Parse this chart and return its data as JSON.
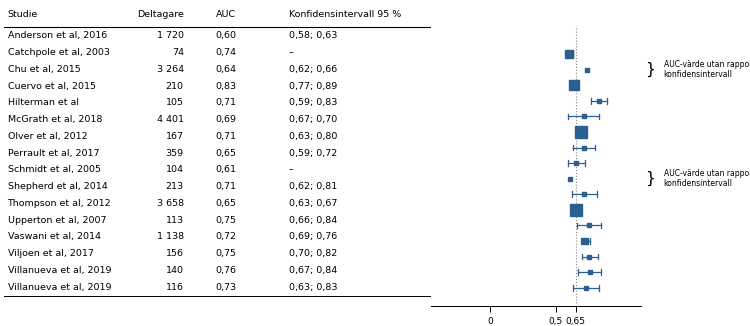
{
  "studies": [
    {
      "name": "Anderson et al, 2016",
      "n": "1 720",
      "auc": 0.6,
      "ci_text": "0,58; 0,63",
      "ci_lo": 0.58,
      "ci_hi": 0.63,
      "has_ci": true,
      "n_val": 1720
    },
    {
      "name": "Catchpole et al, 2003",
      "n": "74",
      "auc": 0.74,
      "ci_text": "–",
      "ci_lo": null,
      "ci_hi": null,
      "has_ci": false,
      "n_val": 74
    },
    {
      "name": "Chu et al, 2015",
      "n": "3 264",
      "auc": 0.64,
      "ci_text": "0,62; 0,66",
      "ci_lo": 0.62,
      "ci_hi": 0.66,
      "has_ci": true,
      "n_val": 3264
    },
    {
      "name": "Cuervo et al, 2015",
      "n": "210",
      "auc": 0.83,
      "ci_text": "0,77; 0,89",
      "ci_lo": 0.77,
      "ci_hi": 0.89,
      "has_ci": true,
      "n_val": 210
    },
    {
      "name": "Hilterman et al",
      "n": "105",
      "auc": 0.71,
      "ci_text": "0,59; 0,83",
      "ci_lo": 0.59,
      "ci_hi": 0.83,
      "has_ci": true,
      "n_val": 105
    },
    {
      "name": "McGrath et al, 2018",
      "n": "4 401",
      "auc": 0.69,
      "ci_text": "0,67; 0,70",
      "ci_lo": 0.67,
      "ci_hi": 0.7,
      "has_ci": true,
      "n_val": 4401
    },
    {
      "name": "Olver et al, 2012",
      "n": "167",
      "auc": 0.71,
      "ci_text": "0,63; 0,80",
      "ci_lo": 0.63,
      "ci_hi": 0.8,
      "has_ci": true,
      "n_val": 167
    },
    {
      "name": "Perrault et al, 2017",
      "n": "359",
      "auc": 0.65,
      "ci_text": "0,59; 0,72",
      "ci_lo": 0.59,
      "ci_hi": 0.72,
      "has_ci": true,
      "n_val": 359
    },
    {
      "name": "Schmidt et al, 2005",
      "n": "104",
      "auc": 0.61,
      "ci_text": "–",
      "ci_lo": null,
      "ci_hi": null,
      "has_ci": false,
      "n_val": 104
    },
    {
      "name": "Shepherd et al, 2014",
      "n": "213",
      "auc": 0.71,
      "ci_text": "0,62; 0,81",
      "ci_lo": 0.62,
      "ci_hi": 0.81,
      "has_ci": true,
      "n_val": 213
    },
    {
      "name": "Thompson et al, 2012",
      "n": "3 658",
      "auc": 0.65,
      "ci_text": "0,63; 0,67",
      "ci_lo": 0.63,
      "ci_hi": 0.67,
      "has_ci": true,
      "n_val": 3658
    },
    {
      "name": "Upperton et al, 2007",
      "n": "113",
      "auc": 0.75,
      "ci_text": "0,66; 0,84",
      "ci_lo": 0.66,
      "ci_hi": 0.84,
      "has_ci": true,
      "n_val": 113
    },
    {
      "name": "Vaswani et al, 2014",
      "n": "1 138",
      "auc": 0.72,
      "ci_text": "0,69; 0,76",
      "ci_lo": 0.69,
      "ci_hi": 0.76,
      "has_ci": true,
      "n_val": 1138
    },
    {
      "name": "Viljoen et al, 2017",
      "n": "156",
      "auc": 0.75,
      "ci_text": "0,70; 0,82",
      "ci_lo": 0.7,
      "ci_hi": 0.82,
      "has_ci": true,
      "n_val": 156
    },
    {
      "name": "Villanueva et al, 2019",
      "n": "140",
      "auc": 0.76,
      "ci_text": "0,67; 0,84",
      "ci_lo": 0.67,
      "ci_hi": 0.84,
      "has_ci": true,
      "n_val": 140
    },
    {
      "name": "Villanueva et al, 2019",
      "n": "116",
      "auc": 0.73,
      "ci_text": "0,63; 0,83",
      "ci_lo": 0.63,
      "ci_hi": 0.83,
      "has_ci": true,
      "n_val": 116
    }
  ],
  "col_headers": [
    "Studie",
    "Deltagare",
    "AUC",
    "Konfidensintervall 95 %"
  ],
  "ref_line": 0.65,
  "x_ticks": [
    0.0,
    0.5,
    0.65
  ],
  "x_tick_labels": [
    "0",
    "0,5",
    "0,65"
  ],
  "x_min": -0.45,
  "x_max": 1.15,
  "dot_color": "#2a5f8f",
  "max_n": 4401,
  "annot_text": "AUC-värde utan rapporterat\nkonfidensintervall",
  "no_ci_indices": [
    1,
    8
  ]
}
